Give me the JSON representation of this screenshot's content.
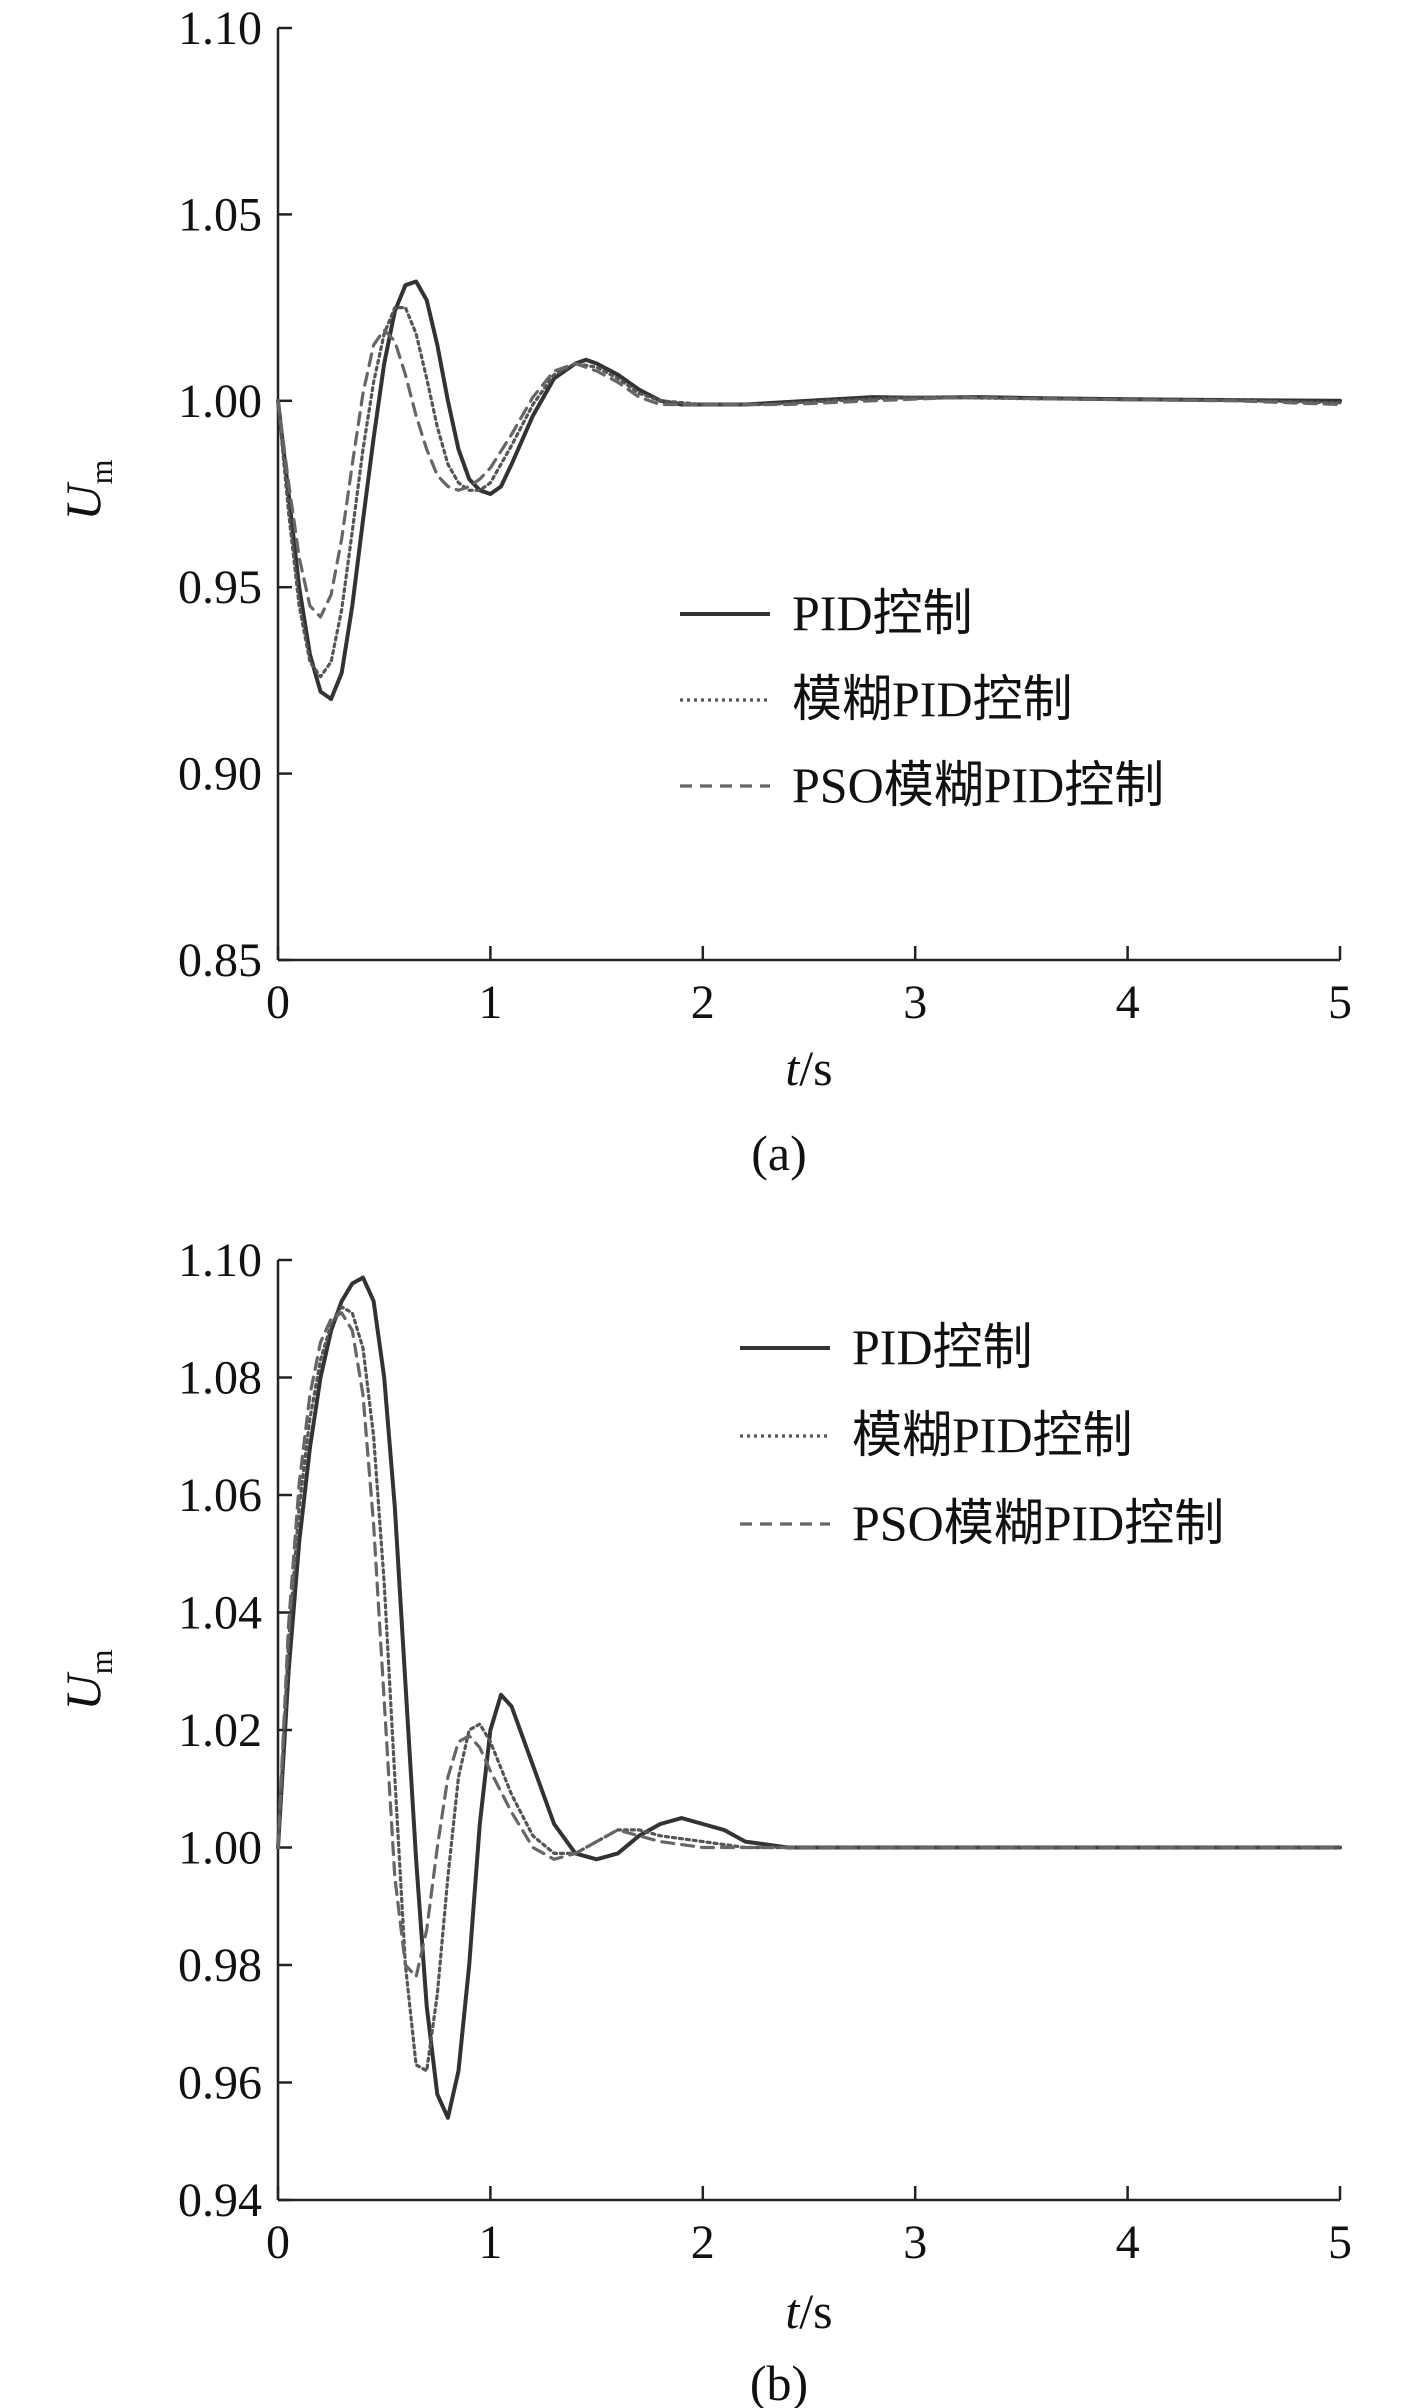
{
  "chart_data": [
    {
      "type": "line",
      "caption": "(a)",
      "xlabel": "t/s",
      "xlabel_italic": "t",
      "xlabel_rest": "/s",
      "ylabel": "Um",
      "ylabel_main": "U",
      "ylabel_sub": "m",
      "xlim": [
        0,
        5
      ],
      "ylim": [
        0.85,
        1.1
      ],
      "xticks": [
        "0",
        "1",
        "2",
        "3",
        "4",
        "5"
      ],
      "yticks": [
        "0.85",
        "0.90",
        "0.95",
        "1.00",
        "1.05",
        "1.10"
      ],
      "grid": false,
      "legend_position": "lower-right",
      "series": [
        {
          "name": "PID控制",
          "style": "solid",
          "color": "#333333",
          "points": [
            [
              0,
              1.0
            ],
            [
              0.05,
              0.975
            ],
            [
              0.1,
              0.95
            ],
            [
              0.15,
              0.932
            ],
            [
              0.2,
              0.922
            ],
            [
              0.25,
              0.92
            ],
            [
              0.3,
              0.927
            ],
            [
              0.35,
              0.945
            ],
            [
              0.4,
              0.968
            ],
            [
              0.45,
              0.99
            ],
            [
              0.5,
              1.01
            ],
            [
              0.55,
              1.024
            ],
            [
              0.6,
              1.031
            ],
            [
              0.65,
              1.032
            ],
            [
              0.7,
              1.027
            ],
            [
              0.75,
              1.015
            ],
            [
              0.8,
              1.0
            ],
            [
              0.85,
              0.987
            ],
            [
              0.9,
              0.979
            ],
            [
              0.95,
              0.976
            ],
            [
              1.0,
              0.975
            ],
            [
              1.05,
              0.977
            ],
            [
              1.1,
              0.983
            ],
            [
              1.2,
              0.996
            ],
            [
              1.3,
              1.006
            ],
            [
              1.4,
              1.01
            ],
            [
              1.45,
              1.011
            ],
            [
              1.5,
              1.01
            ],
            [
              1.6,
              1.007
            ],
            [
              1.7,
              1.003
            ],
            [
              1.8,
              1.0
            ],
            [
              1.9,
              0.999
            ],
            [
              2.0,
              0.999
            ],
            [
              2.2,
              0.999
            ],
            [
              2.5,
              1.0
            ],
            [
              2.8,
              1.001
            ],
            [
              3.0,
              1.0008
            ],
            [
              3.3,
              1.001
            ],
            [
              3.6,
              1.0007
            ],
            [
              4.0,
              1.0004
            ],
            [
              4.5,
              1.0002
            ],
            [
              5.0,
              1.0
            ]
          ]
        },
        {
          "name": "模糊PID控制",
          "style": "dotted",
          "color": "#555555",
          "points": [
            [
              0,
              1.0
            ],
            [
              0.05,
              0.97
            ],
            [
              0.1,
              0.945
            ],
            [
              0.15,
              0.93
            ],
            [
              0.2,
              0.926
            ],
            [
              0.25,
              0.93
            ],
            [
              0.3,
              0.944
            ],
            [
              0.35,
              0.965
            ],
            [
              0.4,
              0.987
            ],
            [
              0.45,
              1.005
            ],
            [
              0.5,
              1.018
            ],
            [
              0.55,
              1.025
            ],
            [
              0.6,
              1.025
            ],
            [
              0.65,
              1.018
            ],
            [
              0.7,
              1.006
            ],
            [
              0.75,
              0.993
            ],
            [
              0.8,
              0.983
            ],
            [
              0.85,
              0.978
            ],
            [
              0.9,
              0.976
            ],
            [
              0.95,
              0.976
            ],
            [
              1.0,
              0.978
            ],
            [
              1.1,
              0.988
            ],
            [
              1.2,
              0.999
            ],
            [
              1.3,
              1.007
            ],
            [
              1.4,
              1.01
            ],
            [
              1.5,
              1.009
            ],
            [
              1.6,
              1.006
            ],
            [
              1.7,
              1.002
            ],
            [
              1.8,
              1.0
            ],
            [
              2.0,
              0.999
            ],
            [
              2.3,
              0.999
            ],
            [
              2.6,
              1.0
            ],
            [
              3.0,
              1.001
            ],
            [
              3.5,
              1.0006
            ],
            [
              4.0,
              1.0003
            ],
            [
              4.5,
              1.0001
            ],
            [
              5.0,
              0.9995
            ]
          ]
        },
        {
          "name": "PSO模糊PID控制",
          "style": "dashed",
          "color": "#666666",
          "points": [
            [
              0,
              1.0
            ],
            [
              0.05,
              0.978
            ],
            [
              0.1,
              0.958
            ],
            [
              0.15,
              0.945
            ],
            [
              0.2,
              0.942
            ],
            [
              0.25,
              0.948
            ],
            [
              0.3,
              0.963
            ],
            [
              0.35,
              0.983
            ],
            [
              0.4,
              1.002
            ],
            [
              0.45,
              1.015
            ],
            [
              0.5,
              1.019
            ],
            [
              0.55,
              1.016
            ],
            [
              0.6,
              1.007
            ],
            [
              0.65,
              0.996
            ],
            [
              0.7,
              0.987
            ],
            [
              0.75,
              0.98
            ],
            [
              0.8,
              0.977
            ],
            [
              0.85,
              0.976
            ],
            [
              0.9,
              0.977
            ],
            [
              0.95,
              0.979
            ],
            [
              1.0,
              0.982
            ],
            [
              1.1,
              0.991
            ],
            [
              1.2,
              1.001
            ],
            [
              1.3,
              1.008
            ],
            [
              1.4,
              1.01
            ],
            [
              1.5,
              1.008
            ],
            [
              1.6,
              1.005
            ],
            [
              1.7,
              1.001
            ],
            [
              1.8,
              0.999
            ],
            [
              2.0,
              0.999
            ],
            [
              2.4,
              0.999
            ],
            [
              2.8,
              1.0
            ],
            [
              3.2,
              1.0009
            ],
            [
              3.6,
              1.0006
            ],
            [
              4.0,
              1.0003
            ],
            [
              4.5,
              1.0
            ],
            [
              5.0,
              0.999
            ]
          ]
        }
      ]
    },
    {
      "type": "line",
      "caption": "(b)",
      "xlabel": "t/s",
      "xlabel_italic": "t",
      "xlabel_rest": "/s",
      "ylabel": "Um",
      "ylabel_main": "U",
      "ylabel_sub": "m",
      "xlim": [
        0,
        5
      ],
      "ylim": [
        0.94,
        1.1
      ],
      "xticks": [
        "0",
        "1",
        "2",
        "3",
        "4",
        "5"
      ],
      "yticks": [
        "0.94",
        "0.96",
        "0.98",
        "1.00",
        "1.02",
        "1.04",
        "1.06",
        "1.08",
        "1.10"
      ],
      "grid": false,
      "legend_position": "top-right",
      "series": [
        {
          "name": "PID控制",
          "style": "solid",
          "color": "#333333",
          "points": [
            [
              0,
              1.0
            ],
            [
              0.05,
              1.03
            ],
            [
              0.1,
              1.052
            ],
            [
              0.15,
              1.068
            ],
            [
              0.2,
              1.08
            ],
            [
              0.25,
              1.088
            ],
            [
              0.3,
              1.093
            ],
            [
              0.35,
              1.096
            ],
            [
              0.4,
              1.097
            ],
            [
              0.45,
              1.093
            ],
            [
              0.5,
              1.08
            ],
            [
              0.55,
              1.058
            ],
            [
              0.6,
              1.028
            ],
            [
              0.65,
              0.998
            ],
            [
              0.7,
              0.973
            ],
            [
              0.75,
              0.958
            ],
            [
              0.8,
              0.954
            ],
            [
              0.85,
              0.962
            ],
            [
              0.9,
              0.98
            ],
            [
              0.95,
              1.004
            ],
            [
              1.0,
              1.02
            ],
            [
              1.05,
              1.026
            ],
            [
              1.1,
              1.024
            ],
            [
              1.2,
              1.014
            ],
            [
              1.3,
              1.004
            ],
            [
              1.4,
              0.999
            ],
            [
              1.5,
              0.998
            ],
            [
              1.6,
              0.999
            ],
            [
              1.7,
              1.002
            ],
            [
              1.8,
              1.004
            ],
            [
              1.9,
              1.005
            ],
            [
              2.0,
              1.004
            ],
            [
              2.1,
              1.003
            ],
            [
              2.2,
              1.001
            ],
            [
              2.4,
              1.0
            ],
            [
              2.7,
              1.0
            ],
            [
              3.0,
              1.0
            ],
            [
              4.0,
              1.0
            ],
            [
              5.0,
              1.0
            ]
          ]
        },
        {
          "name": "模糊PID控制",
          "style": "dotted",
          "color": "#555555",
          "points": [
            [
              0,
              1.0
            ],
            [
              0.05,
              1.035
            ],
            [
              0.1,
              1.058
            ],
            [
              0.15,
              1.073
            ],
            [
              0.2,
              1.083
            ],
            [
              0.25,
              1.089
            ],
            [
              0.3,
              1.092
            ],
            [
              0.35,
              1.091
            ],
            [
              0.4,
              1.085
            ],
            [
              0.45,
              1.07
            ],
            [
              0.5,
              1.045
            ],
            [
              0.55,
              1.012
            ],
            [
              0.6,
              0.98
            ],
            [
              0.65,
              0.963
            ],
            [
              0.7,
              0.962
            ],
            [
              0.75,
              0.975
            ],
            [
              0.8,
              0.995
            ],
            [
              0.85,
              1.012
            ],
            [
              0.9,
              1.02
            ],
            [
              0.95,
              1.021
            ],
            [
              1.0,
              1.018
            ],
            [
              1.1,
              1.009
            ],
            [
              1.2,
              1.002
            ],
            [
              1.3,
              0.999
            ],
            [
              1.4,
              0.999
            ],
            [
              1.5,
              1.001
            ],
            [
              1.6,
              1.003
            ],
            [
              1.7,
              1.003
            ],
            [
              1.8,
              1.002
            ],
            [
              2.0,
              1.001
            ],
            [
              2.2,
              1.0
            ],
            [
              2.5,
              1.0
            ],
            [
              3.0,
              1.0
            ],
            [
              4.0,
              1.0
            ],
            [
              5.0,
              1.0
            ]
          ]
        },
        {
          "name": "PSO模糊PID控制",
          "style": "dashed",
          "color": "#666666",
          "points": [
            [
              0,
              1.0
            ],
            [
              0.05,
              1.038
            ],
            [
              0.1,
              1.062
            ],
            [
              0.15,
              1.077
            ],
            [
              0.2,
              1.086
            ],
            [
              0.25,
              1.09
            ],
            [
              0.3,
              1.091
            ],
            [
              0.35,
              1.088
            ],
            [
              0.4,
              1.077
            ],
            [
              0.45,
              1.055
            ],
            [
              0.5,
              1.025
            ],
            [
              0.55,
              0.995
            ],
            [
              0.6,
              0.98
            ],
            [
              0.65,
              0.978
            ],
            [
              0.7,
              0.986
            ],
            [
              0.75,
              1.0
            ],
            [
              0.8,
              1.012
            ],
            [
              0.85,
              1.018
            ],
            [
              0.9,
              1.019
            ],
            [
              0.95,
              1.017
            ],
            [
              1.0,
              1.013
            ],
            [
              1.1,
              1.006
            ],
            [
              1.2,
              1.0
            ],
            [
              1.3,
              0.998
            ],
            [
              1.4,
              0.999
            ],
            [
              1.5,
              1.001
            ],
            [
              1.6,
              1.003
            ],
            [
              1.7,
              1.002
            ],
            [
              1.8,
              1.001
            ],
            [
              2.0,
              1.0
            ],
            [
              2.5,
              1.0
            ],
            [
              3.0,
              1.0
            ],
            [
              4.0,
              1.0
            ],
            [
              5.0,
              1.0
            ]
          ]
        }
      ]
    }
  ]
}
